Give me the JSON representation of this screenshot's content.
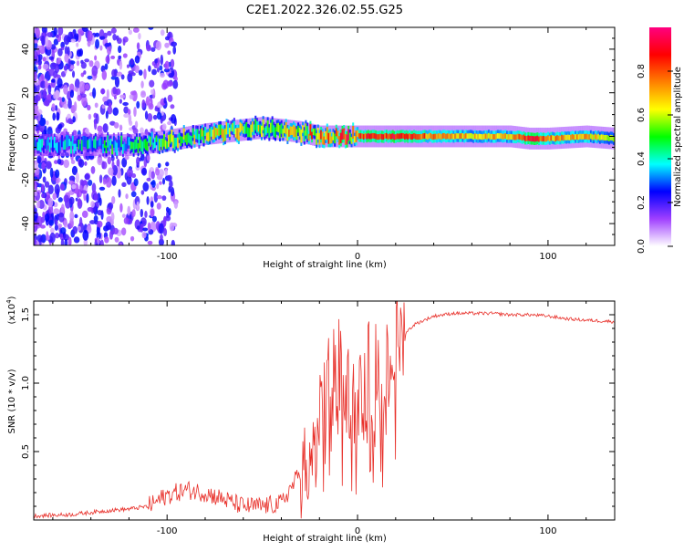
{
  "title": "C2E1.2022.326.02.55.G25",
  "chart_data": [
    {
      "type": "heatmap",
      "xlabel": "Height of straight line (km)",
      "ylabel": "Frequency (Hz)",
      "xlim": [
        -170,
        135
      ],
      "ylim": [
        -50,
        50
      ],
      "xticks": [
        -100,
        0,
        100
      ],
      "yticks": [
        -40,
        -20,
        0,
        20,
        40
      ],
      "colorbar": {
        "label": "Normalized spectral amplitude",
        "range": [
          0,
          1
        ],
        "ticks": [
          "0.0",
          "0.2",
          "0.4",
          "0.6",
          "0.8"
        ],
        "colors": [
          "#ffffff",
          "#a040ff",
          "#0000ff",
          "#00ffff",
          "#00ff00",
          "#ffff00",
          "#ff8000",
          "#ff0000",
          "#ff0080"
        ]
      },
      "ridge": {
        "x": [
          -170,
          -150,
          -130,
          -120,
          -100,
          -80,
          -60,
          -50,
          -40,
          -30,
          -20,
          -10,
          0,
          20,
          40,
          60,
          80,
          90,
          100,
          120,
          135
        ],
        "freq": [
          -4,
          -4,
          -4,
          -4,
          -2,
          1,
          3,
          4,
          3,
          2,
          0,
          0,
          0,
          0,
          0,
          0,
          0,
          -1,
          -1,
          0,
          -1
        ],
        "amplitude": [
          0.35,
          0.4,
          0.45,
          0.45,
          0.55,
          0.6,
          0.65,
          0.6,
          0.65,
          0.7,
          0.8,
          0.85,
          0.85,
          0.9,
          0.75,
          0.7,
          0.7,
          0.9,
          0.75,
          0.7,
          0.6
        ]
      }
    },
    {
      "type": "line",
      "xlabel": "Height of straight line (km)",
      "ylabel": "SNR (10 * v/v)",
      "ylabel_multiplier": "(x10",
      "ylabel_exponent": "4",
      "xlim": [
        -170,
        135
      ],
      "ylim": [
        0,
        1.6
      ],
      "xticks": [
        -100,
        0,
        100
      ],
      "yticks": [
        "0.5",
        "1.0",
        "1.5"
      ],
      "series_color": "#e8302a",
      "x": [
        -170,
        -150,
        -130,
        -120,
        -110,
        -100,
        -90,
        -80,
        -70,
        -60,
        -50,
        -40,
        -30,
        -25,
        -20,
        -15,
        -10,
        -5,
        0,
        5,
        10,
        15,
        20,
        30,
        40,
        50,
        60,
        70,
        80,
        90,
        100,
        110,
        120,
        135
      ],
      "y": [
        0.03,
        0.04,
        0.07,
        0.08,
        0.1,
        0.18,
        0.22,
        0.2,
        0.15,
        0.1,
        0.1,
        0.12,
        0.35,
        0.45,
        0.7,
        1.05,
        1.15,
        0.95,
        0.85,
        1.1,
        1.2,
        1.1,
        1.3,
        1.43,
        1.49,
        1.51,
        1.51,
        1.51,
        1.5,
        1.5,
        1.49,
        1.47,
        1.46,
        1.45
      ]
    }
  ]
}
